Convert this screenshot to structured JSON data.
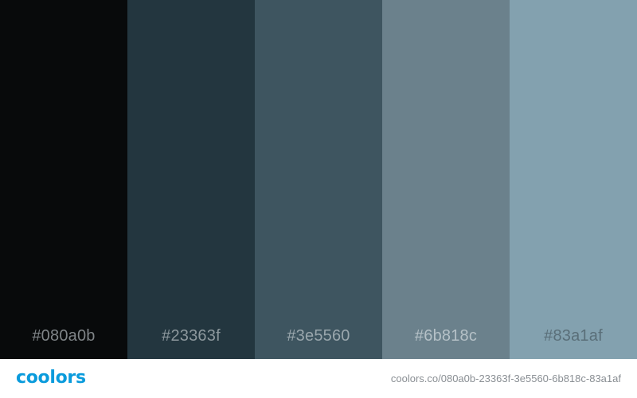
{
  "palette": {
    "swatches": [
      {
        "hex_label": "#080a0b",
        "color": "#080a0b",
        "label_color": "#7f8487"
      },
      {
        "hex_label": "#23363f",
        "color": "#23363f",
        "label_color": "#8d989d"
      },
      {
        "hex_label": "#3e5560",
        "color": "#3e5560",
        "label_color": "#9aa7ad"
      },
      {
        "hex_label": "#6b818c",
        "color": "#6b818c",
        "label_color": "#b5c1c7"
      },
      {
        "hex_label": "#83a1af",
        "color": "#83a1af",
        "label_color": "#5a6f79"
      }
    ]
  },
  "footer": {
    "logo_text": "coolors",
    "logo_color": "#0a9bdc",
    "url": "coolors.co/080a0b-23363f-3e5560-6b818c-83a1af"
  }
}
